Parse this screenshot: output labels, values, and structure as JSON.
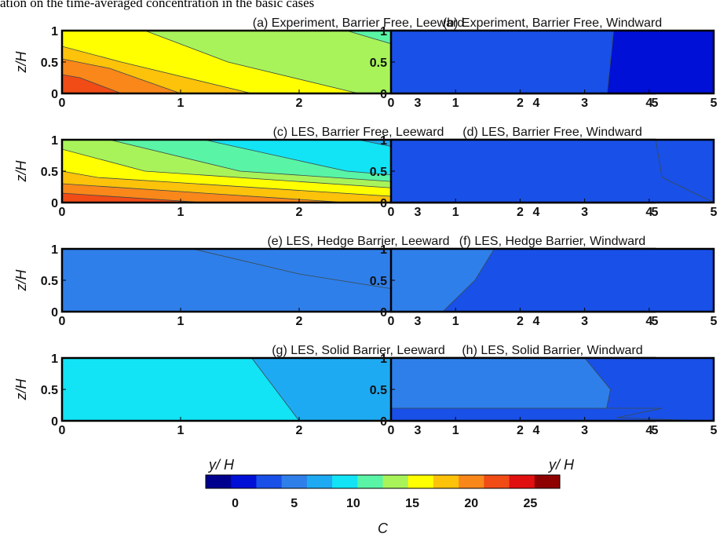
{
  "header_text": "ation on the time-averaged concentration in the basic cases",
  "chart_data": {
    "type": "heatmap",
    "colorbar": {
      "label": "C",
      "ticks": [
        0,
        5,
        10,
        15,
        20,
        25
      ],
      "range": [
        -2.5,
        27.5
      ],
      "step": 2.5,
      "colors": [
        "#00008f",
        "#0010d6",
        "#1950e8",
        "#2f7fea",
        "#1eaaf2",
        "#12e3f5",
        "#59f4a6",
        "#a8f35a",
        "#ffff00",
        "#fdc20a",
        "#f9871a",
        "#f14b16",
        "#e01010",
        "#8f0000"
      ],
      "annotations": [
        "y/ H",
        "y/ H"
      ]
    },
    "panels": [
      {
        "title": "(a) Experiment, Barrier Free, Leeward",
        "xlabel": "",
        "ylabel": "z/H",
        "xticks": [
          "0",
          "1",
          "2",
          "3",
          "4",
          "5"
        ],
        "yticks": [
          "0",
          "0.5",
          "1"
        ],
        "xlim": [
          0,
          5
        ],
        "ylim": [
          0,
          1
        ],
        "contours": [
          {
            "level": 12.5,
            "x_at_z": [
              [
                0,
                5.0
              ],
              [
                0.5,
                4.4
              ],
              [
                1,
                3.6
              ]
            ]
          },
          {
            "level": 15,
            "x_at_z": [
              [
                0,
                4.5
              ],
              [
                0.5,
                3.3
              ],
              [
                1,
                2.4
              ]
            ]
          },
          {
            "level": 17.5,
            "x_at_z": [
              [
                0,
                2.5
              ],
              [
                0.5,
                1.4
              ],
              [
                1,
                0.7
              ]
            ]
          },
          {
            "level": 20,
            "x_at_z": [
              [
                0,
                1.6
              ],
              [
                0.5,
                0.5
              ],
              [
                0.75,
                0.0
              ]
            ]
          },
          {
            "level": 22.5,
            "x_at_z": [
              [
                0,
                1.0
              ],
              [
                0.4,
                0.4
              ],
              [
                0.55,
                0.0
              ]
            ]
          },
          {
            "level": 25,
            "x_at_z": [
              [
                0,
                0.5
              ],
              [
                0.25,
                0.15
              ],
              [
                0.3,
                0.0
              ]
            ]
          }
        ]
      },
      {
        "title": "(b) Experiment, Barrier Free, Windward",
        "xlabel": "",
        "ylabel": "",
        "xticks": [
          "0",
          "1",
          "2",
          "3",
          "4",
          "5"
        ],
        "yticks": [
          "0",
          "0.5",
          "1"
        ],
        "xlim": [
          0,
          5
        ],
        "ylim": [
          0,
          1
        ],
        "contours": [
          {
            "level": 12.5,
            "x_at_z": [
              [
                0,
                0.7
              ],
              [
                0.5,
                0.65
              ],
              [
                1,
                0.45
              ]
            ]
          },
          {
            "level": 7.5,
            "x_at_z": [
              [
                0,
                1.3
              ],
              [
                0.5,
                1.45
              ],
              [
                1,
                1.55
              ]
            ]
          },
          {
            "level": 5,
            "x_at_z": [
              [
                0,
                2.4
              ],
              [
                0.5,
                2.4
              ],
              [
                1,
                2.4
              ]
            ]
          },
          {
            "level": 2.5,
            "x_at_z": [
              [
                0,
                3.35
              ],
              [
                0.5,
                3.4
              ],
              [
                1,
                3.45
              ]
            ]
          }
        ]
      },
      {
        "title": "(c) LES, Barrier Free, Leeward",
        "xlabel": "",
        "ylabel": "z/H",
        "xticks": [
          "0",
          "1",
          "2",
          "3",
          "4",
          "5"
        ],
        "yticks": [
          "0",
          "0.5",
          "1"
        ],
        "xlim": [
          0,
          5
        ],
        "ylim": [
          0,
          1
        ],
        "contours": [
          {
            "level": 7.5,
            "x_at_z": [
              [
                0.5,
                5.0
              ],
              [
                0.85,
                3.6
              ],
              [
                1,
                3.0
              ]
            ]
          },
          {
            "level": 10,
            "x_at_z": [
              [
                0.2,
                5.0
              ],
              [
                0.5,
                3.8
              ],
              [
                1,
                2.5
              ]
            ]
          },
          {
            "level": 12.5,
            "x_at_z": [
              [
                0.1,
                5.0
              ],
              [
                0.5,
                2.4
              ],
              [
                1,
                1.2
              ]
            ]
          },
          {
            "level": 15,
            "x_at_z": [
              [
                0.05,
                5.0
              ],
              [
                0.5,
                1.5
              ],
              [
                1,
                0.4
              ]
            ]
          },
          {
            "level": 17.5,
            "x_at_z": [
              [
                0,
                4.6
              ],
              [
                0.5,
                0.7
              ],
              [
                0.85,
                0.0
              ]
            ]
          },
          {
            "level": 20,
            "x_at_z": [
              [
                0,
                3.6
              ],
              [
                0.4,
                0.3
              ],
              [
                0.5,
                0.0
              ]
            ]
          },
          {
            "level": 22.5,
            "x_at_z": [
              [
                0,
                2.4
              ],
              [
                0.3,
                0.0
              ]
            ]
          },
          {
            "level": 25,
            "x_at_z": [
              [
                0,
                1.2
              ],
              [
                0.15,
                0.0
              ]
            ]
          }
        ]
      },
      {
        "title": "(d) LES, Barrier Free, Windward",
        "xlabel": "",
        "ylabel": "",
        "xticks": [
          "0",
          "1",
          "2",
          "3",
          "4",
          "5"
        ],
        "yticks": [
          "0",
          "0.5",
          "1"
        ],
        "xlim": [
          0,
          5
        ],
        "ylim": [
          0,
          1
        ],
        "contours": [
          {
            "level": 10,
            "x_at_z": [
              [
                0,
                1.0
              ],
              [
                0.5,
                1.1
              ],
              [
                1,
                0.9
              ]
            ]
          },
          {
            "level": 7.5,
            "x_at_z": [
              [
                0,
                1.9
              ],
              [
                0.5,
                2.3
              ],
              [
                1,
                2.0
              ]
            ]
          },
          {
            "level": 5,
            "x_at_z": [
              [
                0,
                3.8
              ],
              [
                0.5,
                3.9
              ],
              [
                1,
                3.6
              ]
            ]
          },
          {
            "level": 2.5,
            "x_at_z": [
              [
                0,
                5.0
              ],
              [
                0.4,
                4.2
              ],
              [
                1,
                4.1
              ]
            ]
          }
        ]
      },
      {
        "title": "(e) LES, Hedge Barrier, Leeward",
        "xlabel": "",
        "ylabel": "z/H",
        "xticks": [
          "0",
          "1",
          "2",
          "3",
          "4",
          "5"
        ],
        "yticks": [
          "0",
          "0.5",
          "1"
        ],
        "xlim": [
          0,
          5
        ],
        "ylim": [
          0,
          1
        ],
        "contours": [
          {
            "level": 7.5,
            "x_at_z": [
              [
                0,
                1.4
              ],
              [
                0.5,
                0.8
              ],
              [
                1,
                0.3
              ]
            ]
          },
          {
            "level": 5,
            "x_at_z": [
              [
                0,
                4.9
              ],
              [
                0.3,
                3.0
              ],
              [
                0.6,
                2.0
              ],
              [
                1,
                1.1
              ]
            ]
          }
        ]
      },
      {
        "title": "(f) LES, Hedge Barrier, Windward",
        "xlabel": "",
        "ylabel": "",
        "xticks": [
          "0",
          "1",
          "2",
          "3",
          "4",
          "5"
        ],
        "yticks": [
          "0",
          "0.5",
          "1"
        ],
        "xlim": [
          0,
          5
        ],
        "ylim": [
          0,
          1
        ],
        "contours": [
          {
            "level": 5,
            "x_at_z": [
              [
                0,
                0.8
              ],
              [
                0.5,
                1.3
              ],
              [
                1,
                1.6
              ]
            ]
          }
        ]
      },
      {
        "title": "(g) LES, Solid Barrier, Leeward",
        "xlabel": "",
        "ylabel": "z/H",
        "xticks": [
          "0",
          "1",
          "2",
          "3",
          "4",
          "5"
        ],
        "yticks": [
          "0",
          "0.5",
          "1"
        ],
        "xlim": [
          0,
          5
        ],
        "ylim": [
          0,
          1
        ],
        "contours": [
          {
            "level": 12.5,
            "x_at_z": [
              [
                0,
                0.7
              ],
              [
                0.5,
                0.6
              ],
              [
                1,
                0.05
              ]
            ]
          },
          {
            "level": 10,
            "x_at_z": [
              [
                0,
                2.0
              ],
              [
                0.5,
                1.8
              ],
              [
                1,
                1.6
              ]
            ]
          }
        ]
      },
      {
        "title": "(h) LES, Solid Barrier, Windward",
        "xlabel": "",
        "ylabel": "",
        "xticks": [
          "0",
          "1",
          "2",
          "3",
          "4",
          "5"
        ],
        "yticks": [
          "0",
          "0.5",
          "1"
        ],
        "xlim": [
          0,
          5
        ],
        "ylim": [
          0,
          1
        ],
        "contours": [
          {
            "level": 10,
            "x_at_z": [
              [
                0.1,
                0.3
              ],
              [
                0.4,
                0.4
              ],
              [
                0.7,
                0.0
              ]
            ]
          },
          {
            "level": 7.5,
            "x_at_z": [
              [
                0,
                1.5
              ],
              [
                0.5,
                1.9
              ],
              [
                1,
                1.5
              ]
            ]
          },
          {
            "level": 5,
            "x_at_z": [
              [
                0,
                3.3
              ],
              [
                0.5,
                3.4
              ],
              [
                1,
                3.0
              ]
            ]
          },
          {
            "level": 2.5,
            "x_at_z": [
              [
                0,
                4.8
              ],
              [
                0.05,
                3.5
              ],
              [
                0.2,
                4.2
              ]
            ]
          }
        ]
      }
    ]
  }
}
